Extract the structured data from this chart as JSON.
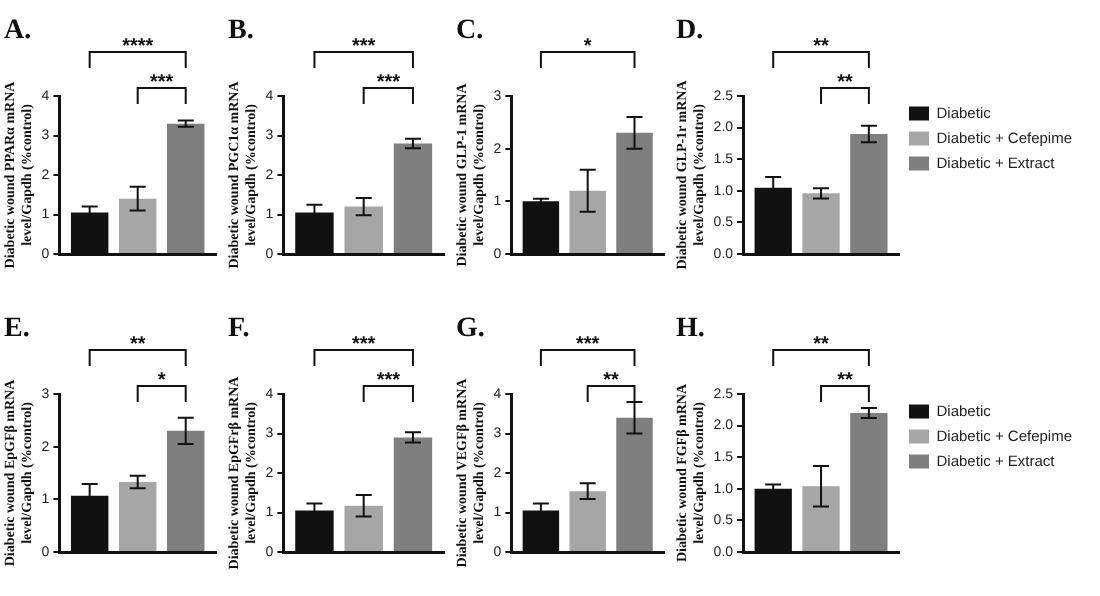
{
  "chart_data": [
    {
      "type": "bar",
      "title": "A.",
      "ylabel": "Diabetic wound PPARα mRNA level/Gapdh (%control)",
      "categories": [
        null
      ],
      "series": [
        {
          "color": "#111111",
          "values": [
            1.05
          ],
          "errors": [
            0.15
          ]
        },
        {
          "color": "#a6a6a6",
          "values": [
            1.4
          ],
          "errors": [
            0.3
          ]
        },
        {
          "color": "#7f7f7f",
          "values": [
            3.3
          ],
          "errors": [
            0.08
          ]
        }
      ],
      "ylim": [
        0,
        4
      ],
      "yticks": [
        0,
        1,
        2,
        3,
        4
      ],
      "annotations": [
        "****",
        "***"
      ]
    },
    {
      "type": "bar",
      "title": "B.",
      "ylabel": "Diabetic wound PGC1α mRNA level/Gapdh (%control)",
      "categories": [
        null
      ],
      "series": [
        {
          "color": "#111111",
          "values": [
            1.05
          ],
          "errors": [
            0.2
          ]
        },
        {
          "color": "#a6a6a6",
          "values": [
            1.2
          ],
          "errors": [
            0.22
          ]
        },
        {
          "color": "#7f7f7f",
          "values": [
            2.8
          ],
          "errors": [
            0.12
          ]
        }
      ],
      "ylim": [
        0,
        4
      ],
      "yticks": [
        0,
        1,
        2,
        3,
        4
      ],
      "annotations": [
        "***",
        "***"
      ]
    },
    {
      "type": "bar",
      "title": "C.",
      "ylabel": "Diabetic wound GLP-1 mRNA level/Gapdh (%control)",
      "categories": [
        null
      ],
      "series": [
        {
          "color": "#111111",
          "values": [
            1.0
          ],
          "errors": [
            0.05
          ]
        },
        {
          "color": "#a6a6a6",
          "values": [
            1.2
          ],
          "errors": [
            0.4
          ]
        },
        {
          "color": "#7f7f7f",
          "values": [
            2.3
          ],
          "errors": [
            0.3
          ]
        }
      ],
      "ylim": [
        0,
        3
      ],
      "yticks": [
        0,
        1,
        2,
        3
      ],
      "annotations": [
        "*"
      ]
    },
    {
      "type": "bar",
      "title": "D.",
      "ylabel": "Diabetic wound GLP-1r mRNA level/Gapdh (%control)",
      "categories": [
        null
      ],
      "series": [
        {
          "name": "Diabetic",
          "color": "#111111",
          "values": [
            1.05
          ],
          "errors": [
            0.17
          ]
        },
        {
          "name": "Diabetic + Cefepime",
          "color": "#a6a6a6",
          "values": [
            0.96
          ],
          "errors": [
            0.08
          ]
        },
        {
          "name": "Diabetic + Extract",
          "color": "#7f7f7f",
          "values": [
            1.9
          ],
          "errors": [
            0.13
          ]
        }
      ],
      "ylim": [
        0,
        2.5
      ],
      "yticks": [
        {
          "value": 0,
          "label": "0.0"
        },
        {
          "value": 0.5,
          "label": "0.5"
        },
        {
          "value": 1,
          "label": "1.0"
        },
        {
          "value": 1.5,
          "label": "1.5"
        },
        {
          "value": 2,
          "label": "2.0"
        },
        {
          "value": 2.5,
          "label": "2.5"
        }
      ],
      "annotations": [
        "**",
        "**"
      ],
      "legend": "right"
    },
    {
      "type": "bar",
      "title": "E.",
      "ylabel": "Diabetic wound EpGFβ mRNA level/Gapdh (%control)",
      "categories": [
        null
      ],
      "series": [
        {
          "color": "#111111",
          "values": [
            1.07
          ],
          "errors": [
            0.22
          ]
        },
        {
          "color": "#a6a6a6",
          "values": [
            1.33
          ],
          "errors": [
            0.12
          ]
        },
        {
          "color": "#7f7f7f",
          "values": [
            2.3
          ],
          "errors": [
            0.25
          ]
        }
      ],
      "ylim": [
        0,
        3
      ],
      "yticks": [
        0,
        1,
        2,
        3
      ],
      "annotations": [
        "**",
        "*"
      ]
    },
    {
      "type": "bar",
      "title": "F.",
      "ylabel": "Diabetic wound EpGFrβ mRNA level/Gapdh (%control)",
      "categories": [
        null
      ],
      "series": [
        {
          "color": "#111111",
          "values": [
            1.05
          ],
          "errors": [
            0.18
          ]
        },
        {
          "color": "#a6a6a6",
          "values": [
            1.17
          ],
          "errors": [
            0.27
          ]
        },
        {
          "color": "#7f7f7f",
          "values": [
            2.9
          ],
          "errors": [
            0.13
          ]
        }
      ],
      "ylim": [
        0,
        4
      ],
      "yticks": [
        0,
        1,
        2,
        3,
        4
      ],
      "annotations": [
        "***",
        "***"
      ]
    },
    {
      "type": "bar",
      "title": "G.",
      "ylabel": "Diabetic wound VEGFβ mRNA level/Gapdh (%control)",
      "categories": [
        null
      ],
      "series": [
        {
          "color": "#111111",
          "values": [
            1.05
          ],
          "errors": [
            0.18
          ]
        },
        {
          "color": "#a6a6a6",
          "values": [
            1.54
          ],
          "errors": [
            0.2
          ]
        },
        {
          "color": "#7f7f7f",
          "values": [
            3.4
          ],
          "errors": [
            0.4
          ]
        }
      ],
      "ylim": [
        0,
        4
      ],
      "yticks": [
        0,
        1,
        2,
        3,
        4
      ],
      "annotations": [
        "***",
        "**"
      ]
    },
    {
      "type": "bar",
      "title": "H.",
      "ylabel": "Diabetic wound FGFβ mRNA level/Gapdh (%control)",
      "categories": [
        null
      ],
      "series": [
        {
          "name": "Diabetic",
          "color": "#111111",
          "values": [
            1.0
          ],
          "errors": [
            0.07
          ]
        },
        {
          "name": "Diabetic + Cefepime",
          "color": "#a6a6a6",
          "values": [
            1.04
          ],
          "errors": [
            0.32
          ]
        },
        {
          "name": "Diabetic + Extract",
          "color": "#7f7f7f",
          "values": [
            2.2
          ],
          "errors": [
            0.08
          ]
        }
      ],
      "ylim": [
        0,
        2.5
      ],
      "yticks": [
        {
          "value": 0,
          "label": "0.0"
        },
        {
          "value": 0.5,
          "label": "0.5"
        },
        {
          "value": 1,
          "label": "1.0"
        },
        {
          "value": 1.5,
          "label": "1.5"
        },
        {
          "value": 2,
          "label": "2.0"
        },
        {
          "value": 2.5,
          "label": "2.5"
        }
      ],
      "annotations": [
        "**",
        "**"
      ],
      "legend": "right"
    }
  ]
}
